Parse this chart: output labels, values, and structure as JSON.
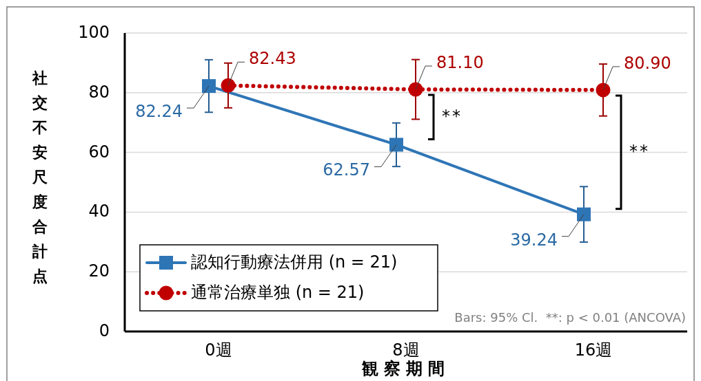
{
  "chart_data": {
    "type": "line",
    "xlabel": "観察期間",
    "ylabel": "社交不安尺度合計点",
    "categories": [
      "0週",
      "8週",
      "16週"
    ],
    "series": [
      {
        "name": "認知行動療法併用 (n = 21)",
        "color": "#2e75b6",
        "values": [
          82.24,
          62.57,
          39.24
        ],
        "value_labels": [
          "82.24",
          "62.57",
          "39.24"
        ],
        "errors": [
          8.8,
          7.3,
          9.3
        ],
        "marker": "square",
        "line_style": "solid"
      },
      {
        "name": "通常治療単独 (n = 21)",
        "color": "#c00000",
        "values": [
          82.43,
          81.1,
          80.9
        ],
        "value_labels": [
          "82.43",
          "81.10",
          "80.90"
        ],
        "errors": [
          7.5,
          10,
          8.7
        ],
        "marker": "circle",
        "line_style": "dotted"
      }
    ],
    "ylim": [
      0,
      100
    ],
    "yticks": [
      0,
      20,
      40,
      60,
      80,
      100
    ],
    "grid": "y",
    "legend": "bottom left",
    "annotations": [
      "**",
      "**",
      "Bars: 95% Cl.  **: p < 0.01 (ANCOVA)"
    ]
  }
}
